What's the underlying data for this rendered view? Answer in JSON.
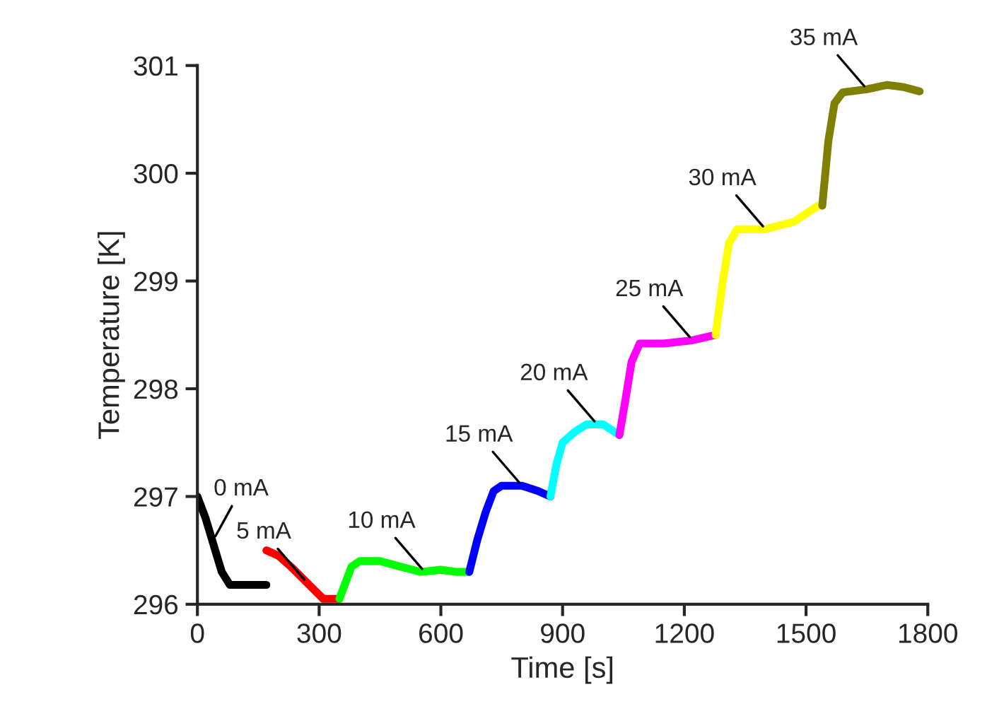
{
  "chart_data": {
    "type": "line",
    "xlabel": "Time [s]",
    "ylabel": "Temperature [K]",
    "xlim": [
      0,
      1800
    ],
    "xticks": [
      0,
      300,
      600,
      900,
      1200,
      1500,
      1800
    ],
    "ylim": [
      296,
      301
    ],
    "yticks": [
      296,
      297,
      298,
      299,
      300,
      301
    ],
    "grid": false,
    "legend": false,
    "series": [
      {
        "color": "#000000",
        "x": [
          0,
          20,
          40,
          60,
          80,
          120,
          170
        ],
        "values": [
          297.0,
          296.8,
          296.55,
          296.3,
          296.18,
          296.18,
          296.18
        ]
      },
      {
        "color": "#ff0000",
        "x": [
          170,
          200,
          230,
          270,
          310,
          350
        ],
        "values": [
          296.5,
          296.45,
          296.35,
          296.2,
          296.05,
          296.05
        ]
      },
      {
        "color": "#00ff00",
        "x": [
          350,
          380,
          400,
          450,
          500,
          550,
          600,
          640,
          670
        ],
        "values": [
          296.05,
          296.35,
          296.4,
          296.4,
          296.35,
          296.3,
          296.32,
          296.3,
          296.3
        ]
      },
      {
        "color": "#0000ff",
        "x": [
          670,
          690,
          710,
          730,
          750,
          800,
          840,
          870
        ],
        "values": [
          296.3,
          296.6,
          296.85,
          297.05,
          297.1,
          297.1,
          297.05,
          297.0
        ]
      },
      {
        "color": "#00ffff",
        "x": [
          870,
          885,
          900,
          930,
          960,
          1000,
          1040
        ],
        "values": [
          297.0,
          297.3,
          297.5,
          297.6,
          297.67,
          297.67,
          297.57
        ]
      },
      {
        "color": "#ff00ff",
        "x": [
          1040,
          1055,
          1070,
          1090,
          1150,
          1220,
          1277
        ],
        "values": [
          297.57,
          297.9,
          298.25,
          298.42,
          298.42,
          298.45,
          298.5
        ]
      },
      {
        "color": "#ffff00",
        "x": [
          1277,
          1295,
          1310,
          1330,
          1400,
          1470,
          1530,
          1540
        ],
        "values": [
          298.5,
          299.0,
          299.35,
          299.48,
          299.48,
          299.55,
          299.7,
          299.7
        ]
      },
      {
        "color": "#808000",
        "x": [
          1540,
          1555,
          1570,
          1590,
          1650,
          1700,
          1740,
          1780
        ],
        "values": [
          299.7,
          300.3,
          300.65,
          300.75,
          300.78,
          300.82,
          300.8,
          300.76
        ]
      }
    ],
    "annotations": [
      {
        "text": "0 mA",
        "x": 40,
        "y": 296.6
      },
      {
        "text": "5 mA",
        "x": 270,
        "y": 296.2
      },
      {
        "text": "10 mA",
        "x": 560,
        "y": 296.3
      },
      {
        "text": "15 mA",
        "x": 800,
        "y": 297.1
      },
      {
        "text": "20 mA",
        "x": 985,
        "y": 297.67
      },
      {
        "text": "25 mA",
        "x": 1220,
        "y": 298.45
      },
      {
        "text": "30 mA",
        "x": 1400,
        "y": 299.48
      },
      {
        "text": "35 mA",
        "x": 1650,
        "y": 300.78
      }
    ]
  }
}
